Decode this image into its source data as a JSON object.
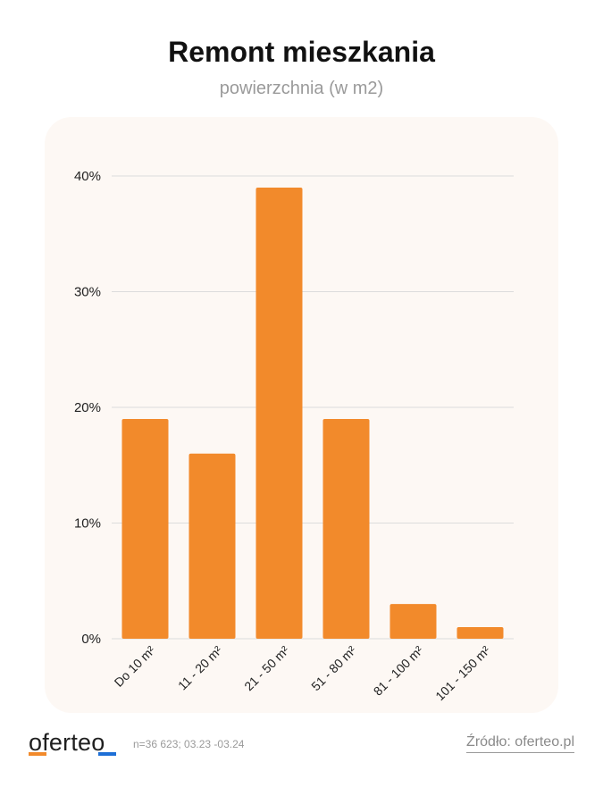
{
  "title": "Remont mieszkania",
  "subtitle": "powierzchnia (w m2)",
  "footer": {
    "logo": "oferteo",
    "note": "n=36 623; 03.23 -03.24",
    "source": "Źródło: oferteo.pl"
  },
  "colors": {
    "bar": "#f28a2b",
    "panel": "#fdf8f4",
    "grid": "#dcdcdc",
    "accent_blue": "#1d6fd6"
  },
  "chart_data": {
    "type": "bar",
    "categories": [
      "Do 10 m²",
      "11 - 20 m²",
      "21 - 50 m²",
      "51 - 80 m²",
      "81 - 100 m²",
      "101 - 150 m²"
    ],
    "values": [
      19,
      16,
      39,
      19,
      3,
      1
    ],
    "unit": "%",
    "yticks": [
      "0%",
      "10%",
      "20%",
      "30%",
      "40%"
    ],
    "ylim": [
      0,
      40
    ],
    "grid": true,
    "legend": "none"
  }
}
